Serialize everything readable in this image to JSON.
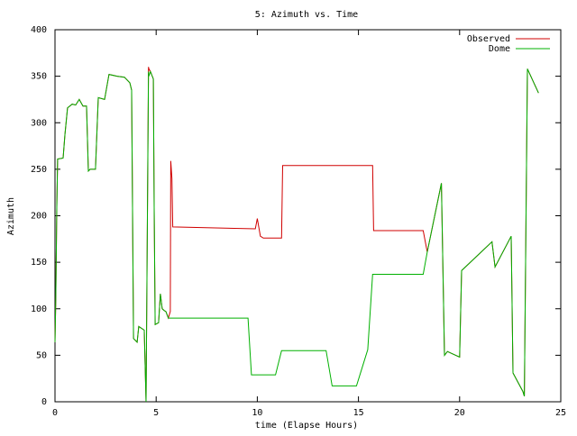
{
  "chart_data": {
    "type": "line",
    "title": "5: Azimuth vs. Time",
    "x_label": "time (Elapse Hours)",
    "y_label": "Azimuth",
    "xlim": [
      0,
      25
    ],
    "xticks": [
      0,
      5,
      10,
      15,
      20,
      25
    ],
    "ylim": [
      0,
      400
    ],
    "yticks": [
      0,
      50,
      100,
      150,
      200,
      250,
      300,
      350,
      400
    ],
    "legend": "upper right",
    "series": [
      {
        "name": "Observed",
        "color": "#d00000",
        "x": [
          0,
          0.04,
          0.09,
          0.13,
          0.4,
          0.49,
          0.62,
          0.85,
          1.02,
          1.2,
          1.38,
          1.56,
          1.65,
          1.74,
          2.0,
          2.14,
          2.45,
          2.67,
          3.07,
          3.43,
          3.7,
          3.79,
          3.88,
          4.06,
          4.14,
          4.41,
          4.5,
          4.62,
          4.64,
          4.72,
          4.86,
          4.9,
          4.95,
          5.12,
          5.21,
          5.3,
          5.4,
          5.48,
          5.6,
          5.7,
          5.72,
          5.78,
          5.82,
          9.9,
          10.0,
          10.15,
          10.3,
          11.2,
          11.25,
          15.7,
          15.75,
          18.2,
          18.4,
          19.1,
          19.25,
          19.4,
          20.0,
          20.1,
          21.6,
          21.75,
          22.55,
          22.64,
          23.13,
          23.2,
          23.35,
          23.9
        ],
        "values": [
          64,
          112,
          209,
          261,
          262,
          287,
          316,
          320,
          319,
          325,
          318,
          318,
          248,
          250,
          250,
          327,
          325,
          352,
          350,
          349,
          343,
          335,
          68,
          64,
          81,
          77,
          0,
          360,
          358,
          355,
          347,
          209,
          83,
          85,
          116,
          100,
          98,
          97,
          90,
          97,
          259,
          240,
          188,
          186,
          197,
          178,
          176,
          176,
          254,
          254,
          184,
          184,
          161,
          235,
          50,
          54,
          48,
          141,
          172,
          145,
          178,
          31,
          11,
          6,
          358,
          332
        ]
      },
      {
        "name": "Dome",
        "color": "#00b000",
        "x": [
          0,
          0.04,
          0.09,
          0.13,
          0.4,
          0.49,
          0.62,
          0.85,
          1.02,
          1.2,
          1.38,
          1.56,
          1.65,
          1.74,
          2.0,
          2.14,
          2.45,
          2.67,
          3.07,
          3.43,
          3.7,
          3.79,
          3.88,
          4.06,
          4.14,
          4.41,
          4.5,
          4.62,
          4.64,
          4.72,
          4.86,
          4.9,
          4.95,
          5.12,
          5.21,
          5.3,
          5.4,
          5.48,
          5.6,
          9.54,
          9.71,
          10.9,
          11.2,
          13.4,
          13.7,
          14.9,
          15.2,
          15.46,
          15.7,
          18.2,
          18.4,
          19.1,
          19.25,
          19.4,
          20.0,
          20.1,
          21.6,
          21.75,
          22.55,
          22.64,
          23.13,
          23.2,
          23.35,
          23.9
        ],
        "values": [
          64,
          112,
          209,
          261,
          262,
          287,
          316,
          320,
          319,
          325,
          318,
          318,
          248,
          250,
          250,
          327,
          325,
          352,
          350,
          349,
          343,
          335,
          68,
          64,
          81,
          77,
          0,
          355,
          350,
          355,
          347,
          209,
          83,
          85,
          116,
          100,
          98,
          97,
          90,
          90,
          29,
          29,
          55,
          55,
          17,
          17,
          38,
          56,
          137,
          137,
          161,
          235,
          50,
          54,
          48,
          141,
          172,
          145,
          178,
          31,
          11,
          6,
          358,
          332
        ]
      }
    ]
  }
}
